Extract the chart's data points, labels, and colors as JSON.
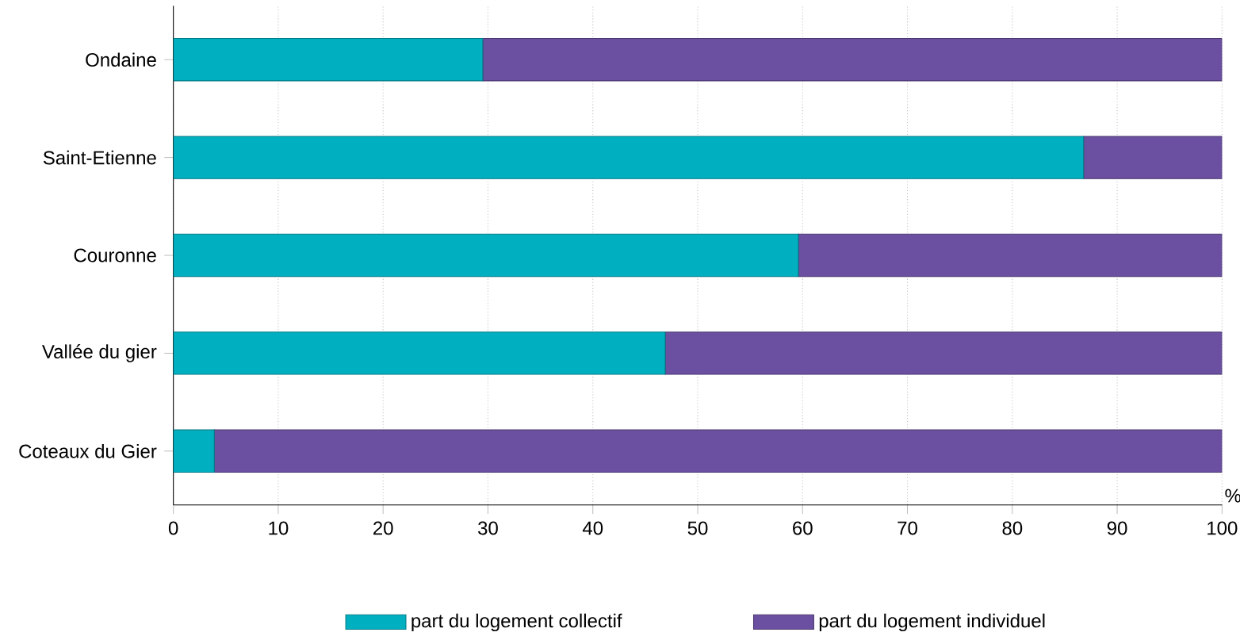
{
  "chart_data": {
    "type": "bar",
    "orientation": "horizontal",
    "stacked": true,
    "categories": [
      "Ondaine",
      "Saint-Etienne",
      "Couronne",
      "Vallée du gier",
      "Coteaux du Gier"
    ],
    "series": [
      {
        "name": "part du logement collectif",
        "color": "#00b0c0",
        "values": [
          29.5,
          86.8,
          59.6,
          46.9,
          3.9
        ]
      },
      {
        "name": "part du logement individuel",
        "color": "#6b4fa0",
        "values": [
          70.5,
          13.2,
          40.4,
          53.1,
          96.1
        ]
      }
    ],
    "xlabel": "%",
    "xlim": [
      0,
      100
    ],
    "xticks": [
      0,
      10,
      20,
      30,
      40,
      50,
      60,
      70,
      80,
      90,
      100
    ],
    "grid": "x",
    "legend": "bottom"
  }
}
